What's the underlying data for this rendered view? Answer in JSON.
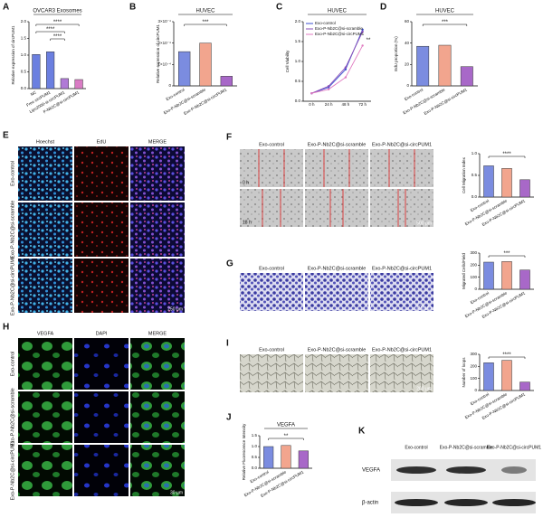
{
  "panels": {
    "A": {
      "label": "A",
      "type": "bar",
      "title": "OVCAR3 Exosomes",
      "ylabel": "Relative expression of circPUM1",
      "categories": [
        "NC",
        "Free circPUM1",
        "Lipo2000-si-circPUM1",
        "P-Nb2C@si-circPUM1"
      ],
      "values": [
        1.02,
        1.1,
        0.3,
        0.27
      ],
      "colors": [
        "#6b7fe0",
        "#6b7fe0",
        "#b07ad6",
        "#d97cc4"
      ],
      "ylim": [
        0,
        2
      ],
      "yticks": [
        {
          "value": 0,
          "label": "0.0"
        },
        {
          "value": 0.5,
          "label": "0.5"
        },
        {
          "value": 1,
          "label": "1.0"
        },
        {
          "value": 1.5,
          "label": "1.5"
        },
        {
          "value": 2,
          "label": "2.0"
        }
      ],
      "significance": [
        "****",
        "****",
        "****"
      ]
    },
    "B": {
      "label": "B",
      "type": "bar",
      "title": "HUVEC",
      "ylabel": "Relative expression of circPUM1",
      "categories": [
        "Exo-control",
        "Exo-P-Nb2C@si-scramble",
        "Exo-P-Nb2C@si-circPUM1"
      ],
      "values": [
        0.00016,
        0.0002,
        4.5e-05
      ],
      "colors": [
        "#7b8ce0",
        "#f2a58e",
        "#a868c8"
      ],
      "ylim": [
        0,
        0.0003
      ],
      "yticks": [
        0,
        {
          "value": 0.0001,
          "label": "1×10⁻⁴"
        },
        {
          "value": 0.0002,
          "label": "2×10⁻⁴"
        },
        {
          "value": 0.0003,
          "label": "3×10⁻⁴"
        }
      ],
      "significance": [
        "***"
      ]
    },
    "C": {
      "label": "C",
      "type": "line",
      "title": "HUVEC",
      "ylabel": "Cell Viability",
      "categories": [
        "0 h",
        "24 h",
        "48 h",
        "72 h"
      ],
      "series": [
        {
          "name": "Exo-control",
          "color": "#3b4fd0",
          "values": [
            0.2,
            0.35,
            0.8,
            1.8
          ]
        },
        {
          "name": "Exo-P-Nb2C@si-scramble",
          "color": "#8a4fb8",
          "values": [
            0.2,
            0.38,
            0.85,
            1.75
          ]
        },
        {
          "name": "Exo-P-Nb2C@si-circPUM1",
          "color": "#e07ac0",
          "values": [
            0.2,
            0.3,
            0.6,
            1.4
          ]
        }
      ],
      "ylim": [
        0,
        2
      ],
      "yticks": [
        {
          "value": 0,
          "label": "0.0"
        },
        {
          "value": 0.5,
          "label": "0.5"
        },
        {
          "value": 1,
          "label": "1.0"
        },
        {
          "value": 1.5,
          "label": "1.5"
        },
        {
          "value": 2,
          "label": "2.0"
        }
      ],
      "annotation": "**"
    },
    "D": {
      "label": "D",
      "type": "bar",
      "title": "HUVEC",
      "ylabel": "EdU proportion (%)",
      "categories": [
        "Exo-control",
        "Exo-P-Nb2C@si-scramble",
        "Exo-P-Nb2C@si-circPUM1"
      ],
      "values": [
        37,
        38,
        18
      ],
      "colors": [
        "#7b8ce0",
        "#f2a58e",
        "#a868c8"
      ],
      "ylim": [
        0,
        60
      ],
      "yticks": [
        0,
        20,
        40,
        60
      ],
      "significance": [
        "***"
      ]
    },
    "E": {
      "label": "E",
      "columns": [
        "Hoechst",
        "EdU",
        "MERGE"
      ],
      "rows": [
        "Exo-control",
        "Exo-P-Nb2C@si-scramble",
        "Exo-P-Nb2C@si-circPUM1"
      ],
      "scale_bar": "250 μm"
    },
    "F": {
      "label": "F",
      "images": {
        "columns": [
          "Exo-control",
          "Exo-P-Nb2C@si-scramble",
          "Exo-P-Nb2C@si-circPUM1"
        ],
        "rows": [
          "0 h",
          "18 h"
        ],
        "scale_bar": "500 μm"
      },
      "chart": {
        "type": "bar",
        "ylabel": "Cell Migration Index",
        "categories": [
          "Exo-control",
          "Exo-P-Nb2C@si-scramble",
          "Exo-P-Nb2C@si-circPUM1"
        ],
        "values": [
          0.72,
          0.66,
          0.4
        ],
        "colors": [
          "#7b8ce0",
          "#f2a58e",
          "#a868c8"
        ],
        "ylim": [
          0,
          1
        ],
        "yticks": [
          {
            "value": 0,
            "label": "0.0"
          },
          {
            "value": 0.5,
            "label": "0.5"
          },
          {
            "value": 1,
            "label": "1.0"
          }
        ],
        "significance": [
          "****"
        ]
      }
    },
    "G": {
      "label": "G",
      "images": {
        "columns": [
          "Exo-control",
          "Exo-P-Nb2C@si-scramble",
          "Exo-P-Nb2C@si-circPUM1"
        ],
        "scale_bar": "200 μm"
      },
      "chart": {
        "type": "bar",
        "ylabel": "Migrated Cells/Field",
        "categories": [
          "Exo-control",
          "Exo-P-Nb2C@si-scramble",
          "Exo-P-Nb2C@si-circPUM1"
        ],
        "values": [
          225,
          230,
          160
        ],
        "colors": [
          "#7b8ce0",
          "#f2a58e",
          "#a868c8"
        ],
        "ylim": [
          0,
          300
        ],
        "yticks": [
          0,
          100,
          200,
          300
        ],
        "significance": [
          "***"
        ]
      }
    },
    "H": {
      "label": "H",
      "columns": [
        "VEGFA",
        "DAPI",
        "MERGE"
      ],
      "rows": [
        "Exo-control",
        "Exo-P-Nb2C@si-scramble",
        "Exo-P-Nb2C@si-circPUM1"
      ],
      "scale_bar": "30 μm"
    },
    "I": {
      "label": "I",
      "images": {
        "columns": [
          "Exo-control",
          "Exo-P-Nb2C@si-scramble",
          "Exo-P-Nb2C@si-circPUM1"
        ],
        "scale_bar": "200 μm"
      },
      "chart": {
        "type": "bar",
        "ylabel": "Number of loops",
        "categories": [
          "Exo-control",
          "Exo-P-Nb2C@si-scramble",
          "Exo-P-Nb2C@si-circPUM1"
        ],
        "values": [
          230,
          250,
          70
        ],
        "colors": [
          "#7b8ce0",
          "#f2a58e",
          "#a868c8"
        ],
        "ylim": [
          0,
          300
        ],
        "yticks": [
          0,
          100,
          200,
          300
        ],
        "significance": [
          "****"
        ]
      }
    },
    "J": {
      "label": "J",
      "type": "bar",
      "title": "VEGFA",
      "ylabel": "Relative Fluorescence Intensity",
      "categories": [
        "Exo-control",
        "Exo-P-Nb2C@si-scramble",
        "Exo-P-Nb2C@si-circPUM1"
      ],
      "values": [
        1.0,
        1.05,
        0.8
      ],
      "colors": [
        "#7b8ce0",
        "#f2a58e",
        "#a868c8"
      ],
      "ylim": [
        0,
        1.5
      ],
      "yticks": [
        {
          "value": 0,
          "label": "0.0"
        },
        {
          "value": 0.5,
          "label": "0.5"
        },
        {
          "value": 1,
          "label": "1.0"
        },
        {
          "value": 1.5,
          "label": "1.5"
        }
      ],
      "significance": [
        "**"
      ]
    },
    "K": {
      "label": "K",
      "columns": [
        "Exo-control",
        "Exo-P-Nb2C@si-scramble",
        "Exo-P-Nb2C@si-circPUM1"
      ],
      "rows": [
        "VEGFA",
        "β-actin"
      ]
    }
  }
}
